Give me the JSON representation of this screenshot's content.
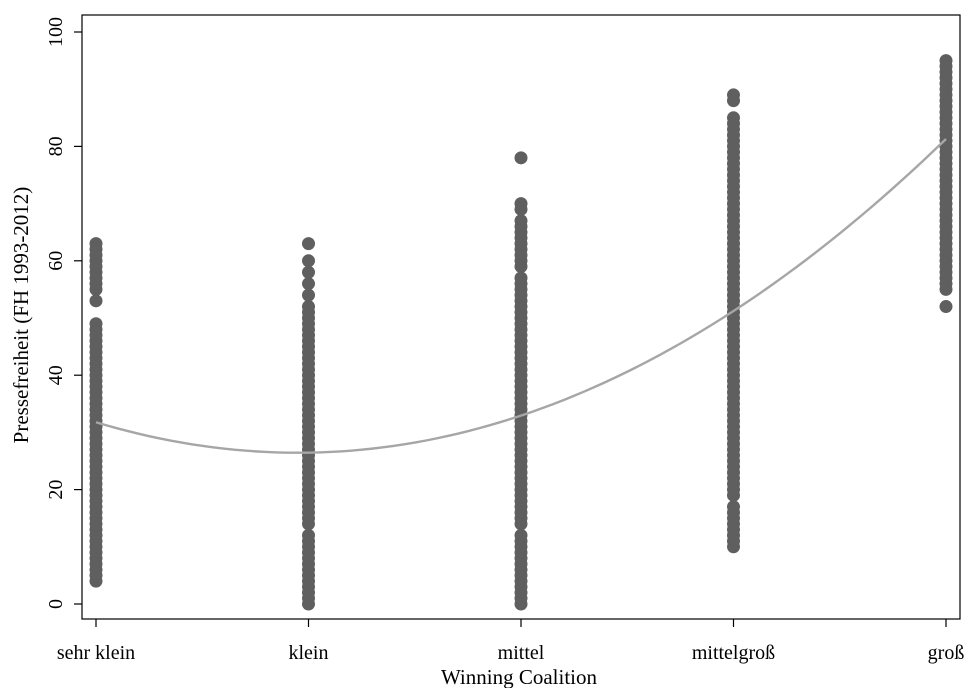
{
  "chart_data": {
    "type": "scatter",
    "xlabel": "Winning Coalition",
    "ylabel": "Pressefreiheit (FH 1993-2012)",
    "categories": [
      "sehr klein",
      "klein",
      "mittel",
      "mittelgroß",
      "groß"
    ],
    "ylim": [
      0,
      100
    ],
    "yticks": [
      0,
      20,
      40,
      60,
      80,
      100
    ],
    "grid": false,
    "legend": "none",
    "point_color": "#5f5f5f",
    "fit_color": "#a6a6a6",
    "series": [
      {
        "category": "sehr klein",
        "values": [
          4,
          5,
          6,
          7,
          8,
          9,
          10,
          11,
          12,
          13,
          14,
          15,
          16,
          17,
          18,
          19,
          20,
          21,
          22,
          23,
          24,
          25,
          26,
          27,
          28,
          29,
          30,
          31,
          32,
          33,
          34,
          35,
          36,
          37,
          38,
          39,
          40,
          41,
          42,
          43,
          44,
          45,
          46,
          47,
          48,
          49,
          53,
          55,
          56,
          57,
          58,
          59,
          60,
          61,
          62,
          63
        ]
      },
      {
        "category": "klein",
        "values": [
          0,
          1,
          2,
          3,
          4,
          5,
          6,
          7,
          8,
          9,
          10,
          11,
          12,
          14,
          15,
          16,
          17,
          18,
          19,
          20,
          21,
          22,
          23,
          24,
          25,
          26,
          27,
          28,
          29,
          30,
          31,
          32,
          33,
          34,
          35,
          36,
          37,
          38,
          39,
          40,
          41,
          42,
          43,
          44,
          45,
          46,
          47,
          48,
          49,
          50,
          51,
          52,
          54,
          56,
          58,
          60,
          63
        ]
      },
      {
        "category": "mittel",
        "values": [
          0,
          1,
          2,
          3,
          4,
          5,
          6,
          7,
          8,
          9,
          10,
          11,
          12,
          14,
          15,
          16,
          17,
          18,
          19,
          20,
          21,
          22,
          23,
          24,
          25,
          26,
          27,
          28,
          29,
          30,
          31,
          32,
          33,
          34,
          35,
          36,
          37,
          38,
          39,
          40,
          41,
          42,
          43,
          44,
          45,
          46,
          47,
          48,
          49,
          50,
          51,
          52,
          53,
          54,
          55,
          56,
          57,
          59,
          60,
          61,
          62,
          63,
          64,
          65,
          66,
          67,
          69,
          70,
          78
        ]
      },
      {
        "category": "mittelgroß",
        "values": [
          10,
          11,
          12,
          13,
          14,
          15,
          16,
          17,
          19,
          20,
          21,
          22,
          23,
          24,
          25,
          26,
          27,
          28,
          29,
          30,
          31,
          32,
          33,
          34,
          35,
          36,
          37,
          38,
          39,
          40,
          41,
          42,
          43,
          44,
          45,
          46,
          47,
          48,
          49,
          50,
          51,
          52,
          53,
          54,
          55,
          56,
          57,
          58,
          59,
          60,
          61,
          62,
          63,
          64,
          65,
          66,
          67,
          68,
          69,
          70,
          71,
          72,
          73,
          74,
          75,
          76,
          77,
          78,
          79,
          80,
          81,
          82,
          83,
          84,
          85,
          88,
          89
        ]
      },
      {
        "category": "groß",
        "values": [
          52,
          55,
          56,
          57,
          58,
          59,
          60,
          61,
          62,
          63,
          64,
          65,
          66,
          67,
          68,
          69,
          70,
          71,
          72,
          73,
          74,
          75,
          76,
          77,
          78,
          79,
          80,
          81,
          82,
          83,
          84,
          85,
          86,
          87,
          88,
          89,
          90,
          91,
          92,
          93,
          94,
          95
        ]
      }
    ],
    "fit": {
      "type": "quadratic",
      "points": [
        [
          0,
          31.8
        ],
        [
          1,
          26.4
        ],
        [
          2,
          33.0
        ],
        [
          3,
          51.2
        ],
        [
          4,
          81.3
        ]
      ]
    }
  }
}
